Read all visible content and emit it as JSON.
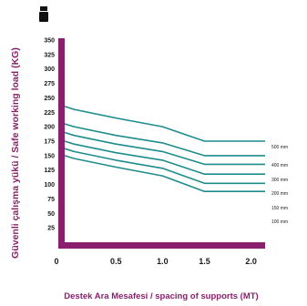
{
  "chart_data": {
    "type": "line",
    "title": "",
    "xlabel": "Destek Ara Mesafesi / spacing of supports (MT)",
    "ylabel": "Güvenli çalışma yükü / Safe working load (KG)",
    "x_ticks": [
      "0",
      "0.5",
      "1.0",
      "1.5",
      "2.0"
    ],
    "y_ticks": [
      "25",
      "50",
      "75",
      "100",
      "125",
      "150",
      "175",
      "200",
      "225",
      "250",
      "275",
      "300",
      "325",
      "350"
    ],
    "xlim": [
      0,
      2.15
    ],
    "ylim": [
      0,
      350
    ],
    "grid": false,
    "legend_position": "right",
    "series": [
      {
        "name": "500 mm",
        "x": [
          0,
          0.1,
          0.55,
          1.05,
          1.5,
          2.15
        ],
        "y": [
          235,
          230,
          215,
          200,
          175,
          175
        ]
      },
      {
        "name": "400 mm",
        "x": [
          0,
          0.1,
          0.55,
          1.05,
          1.5,
          2.15
        ],
        "y": [
          205,
          200,
          185,
          172,
          150,
          150
        ]
      },
      {
        "name": "300 mm",
        "x": [
          0,
          0.1,
          0.55,
          1.05,
          1.5,
          2.15
        ],
        "y": [
          190,
          185,
          170,
          157,
          135,
          135
        ]
      },
      {
        "name": "200 mm",
        "x": [
          0,
          0.1,
          0.55,
          1.05,
          1.5,
          2.15
        ],
        "y": [
          175,
          170,
          155,
          142,
          118,
          118
        ]
      },
      {
        "name": "150 mm",
        "x": [
          0,
          0.1,
          0.55,
          1.05,
          1.5,
          2.15
        ],
        "y": [
          162,
          157,
          142,
          128,
          102,
          102
        ]
      },
      {
        "name": "100 mm",
        "x": [
          0,
          0.1,
          0.55,
          1.05,
          1.5,
          2.15
        ],
        "y": [
          150,
          145,
          130,
          115,
          88,
          88
        ]
      }
    ],
    "colors": {
      "axis": "#8a1f6d",
      "series": "#1f8c8c",
      "plot_bg": "#ffffff"
    },
    "icon": "weight-icon"
  }
}
